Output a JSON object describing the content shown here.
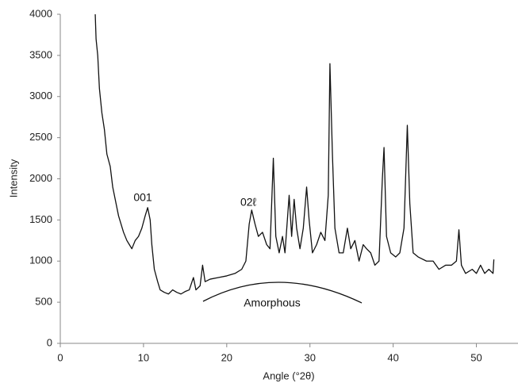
{
  "chart_data": {
    "type": "line",
    "x_label": "Angle (°2θ)",
    "y_label": "Intensity",
    "color": "#111111",
    "xlim": [
      0,
      55
    ],
    "xticks": [
      0,
      10,
      20,
      30,
      40,
      50
    ],
    "ylim": [
      0,
      4000
    ],
    "yticks": [
      0,
      500,
      1000,
      1500,
      2000,
      2500,
      3000,
      3500,
      4000
    ],
    "annotations": [
      "001",
      "02ℓ",
      "Amorphous"
    ],
    "x": [
      4.2,
      4.3,
      4.5,
      4.7,
      5.0,
      5.3,
      5.6,
      6.0,
      6.3,
      6.7,
      7.0,
      7.3,
      7.6,
      8.0,
      8.3,
      8.6,
      9.0,
      9.4,
      9.8,
      10.2,
      10.5,
      10.8,
      11.0,
      11.3,
      11.7,
      12.0,
      12.5,
      13.0,
      13.5,
      14.0,
      14.5,
      15.0,
      15.5,
      16.0,
      16.3,
      16.8,
      17.1,
      17.4,
      18.0,
      19.0,
      20.0,
      21.0,
      21.8,
      22.3,
      22.7,
      23.0,
      23.4,
      23.8,
      24.3,
      24.8,
      25.2,
      25.6,
      25.9,
      26.3,
      26.7,
      27.0,
      27.5,
      27.8,
      28.1,
      28.4,
      28.8,
      29.2,
      29.6,
      29.9,
      30.3,
      30.8,
      31.3,
      31.8,
      32.2,
      32.4,
      32.7,
      33.0,
      33.5,
      34.0,
      34.5,
      34.9,
      35.4,
      35.9,
      36.4,
      36.8,
      37.3,
      37.8,
      38.3,
      38.7,
      38.9,
      39.2,
      39.7,
      40.3,
      40.8,
      41.3,
      41.7,
      42.0,
      42.4,
      43.0,
      44.0,
      44.8,
      45.5,
      46.3,
      47.0,
      47.6,
      47.9,
      48.2,
      48.7,
      49.5,
      50.0,
      50.5,
      51.0,
      51.5,
      52.0,
      52.1
    ],
    "values": [
      4000,
      3700,
      3500,
      3100,
      2800,
      2600,
      2300,
      2150,
      1900,
      1700,
      1550,
      1450,
      1350,
      1250,
      1200,
      1150,
      1250,
      1300,
      1400,
      1550,
      1650,
      1500,
      1200,
      900,
      750,
      650,
      620,
      600,
      650,
      620,
      600,
      630,
      650,
      800,
      650,
      700,
      950,
      750,
      780,
      800,
      820,
      850,
      900,
      1000,
      1450,
      1620,
      1450,
      1300,
      1350,
      1200,
      1150,
      2250,
      1300,
      1100,
      1300,
      1100,
      1800,
      1300,
      1750,
      1400,
      1150,
      1400,
      1900,
      1500,
      1100,
      1200,
      1350,
      1250,
      1800,
      3400,
      2300,
      1400,
      1100,
      1100,
      1400,
      1150,
      1250,
      1000,
      1200,
      1150,
      1100,
      950,
      1000,
      2000,
      2380,
      1300,
      1100,
      1050,
      1100,
      1400,
      2650,
      1700,
      1100,
      1050,
      1000,
      1000,
      900,
      950,
      950,
      1000,
      1380,
      950,
      850,
      900,
      850,
      950,
      850,
      900,
      850,
      1020
    ]
  }
}
